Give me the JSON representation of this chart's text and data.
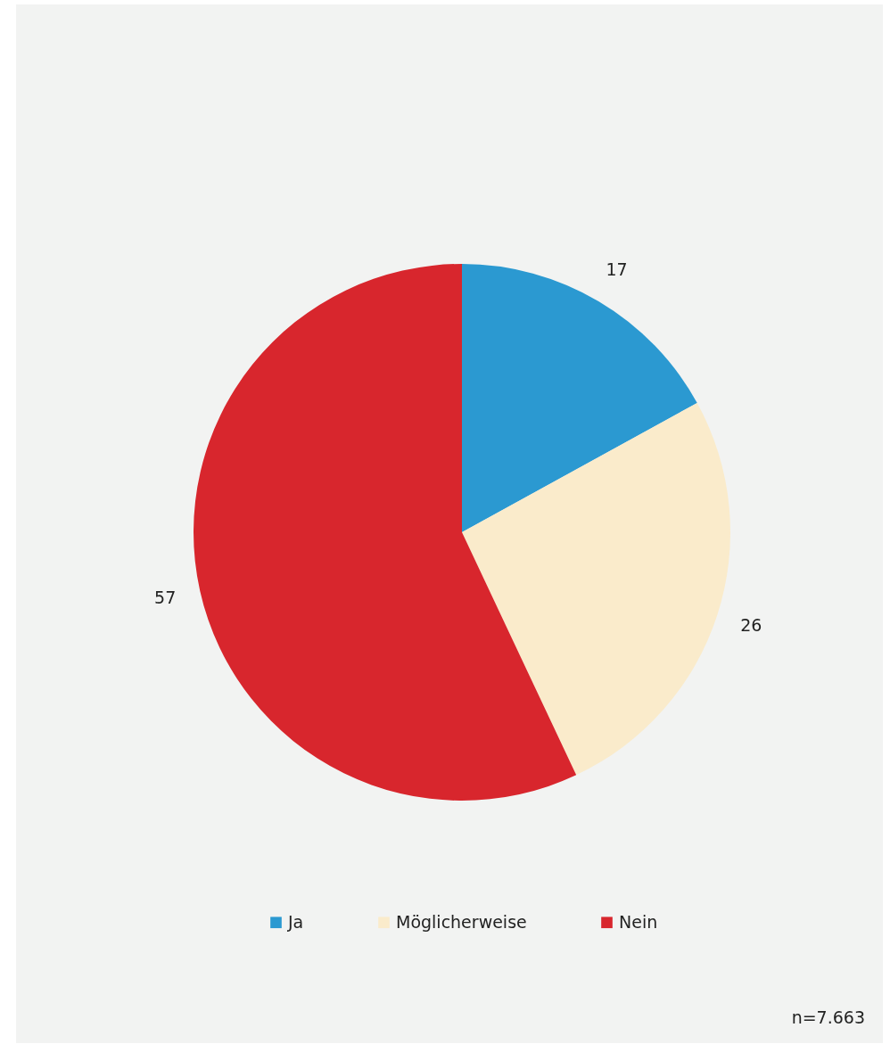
{
  "chart_data": {
    "type": "pie",
    "categories": [
      "Ja",
      "Möglicherweise",
      "Nein"
    ],
    "values": [
      17,
      26,
      57
    ],
    "colors": [
      "#2b99d1",
      "#faebcb",
      "#d8262d"
    ],
    "data_labels": true,
    "legend": "bottom",
    "annotations": [
      "n=7.663"
    ]
  }
}
